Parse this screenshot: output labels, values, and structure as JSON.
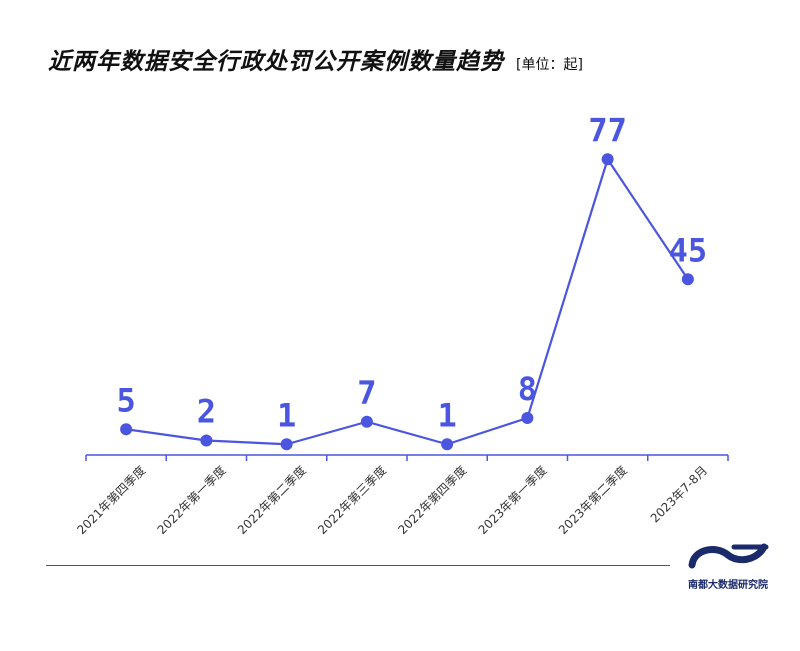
{
  "header": {
    "title": "近两年数据安全行政处罚公开案例数量趋势",
    "unit": "[单位：起]"
  },
  "colors": {
    "line": "#4a55e0",
    "axis": "#4a55e0",
    "logo": "#1b2a6b"
  },
  "chart_data": {
    "type": "line",
    "categories": [
      "2021年第四季度",
      "2022年第一季度",
      "2022年第二季度",
      "2022年第三季度",
      "2022年第四季度",
      "2023年第一季度",
      "2023年第二季度",
      "2023年7-8月"
    ],
    "values": [
      5,
      2,
      1,
      7,
      1,
      8,
      77,
      45
    ],
    "title": "近两年数据安全行政处罚公开案例数量趋势",
    "xlabel": "",
    "ylabel": "",
    "unit": "[单位：起]",
    "ylim": [
      0,
      80
    ],
    "grid": false,
    "legend": "none"
  },
  "footer": {
    "logo_text": "南都大数据研究院",
    "logo_icon": "wave-logo-icon"
  }
}
